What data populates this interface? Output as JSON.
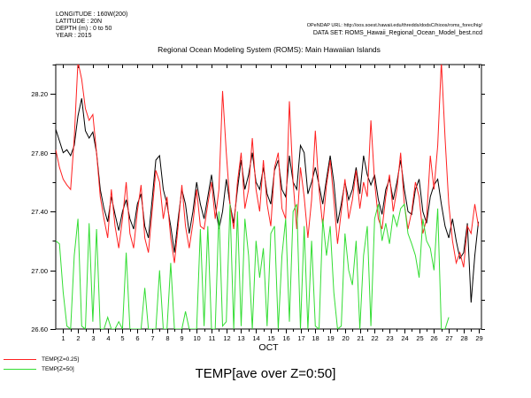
{
  "header": {
    "meta": [
      "LONGITUDE : 160W(200)",
      "LATITUDE : 20N",
      "DEPTH (m) : 0 to 50",
      "YEAR : 2015"
    ],
    "opendap_url": "OPeNDAP URL: http://oos.soest.hawaii.edu/thredds/dodsC/hioos/roms_forec/hig/",
    "dataset": "DATA SET: ROMS_Hawaii_Regional_Ocean_Model_best.ncd",
    "title": "Regional Ocean Modeling System (ROMS): Main Hawaiian Islands"
  },
  "footer": {
    "main_variable_label": "TEMP[ave over Z=0:50]"
  },
  "chart_data": {
    "type": "line",
    "title": "Regional Ocean Modeling System (ROMS): Main Hawaiian Islands",
    "xlabel": "OCT",
    "ylabel": "",
    "bottom_label": "TEMP[ave over Z=0:50]",
    "xlim": [
      0.5,
      29.2
    ],
    "ylim": [
      26.6,
      28.4
    ],
    "x_major_ticks": [
      1,
      2,
      3,
      4,
      5,
      6,
      7,
      8,
      9,
      10,
      11,
      12,
      13,
      14,
      15,
      16,
      17,
      18,
      19,
      20,
      21,
      22,
      23,
      24,
      25,
      26,
      27,
      28,
      29
    ],
    "x_minor_step": 0.5,
    "y_major_ticks": [
      26.6,
      27.0,
      27.4,
      27.8,
      28.2
    ],
    "y_tick_labels": [
      "26.60",
      "27.00",
      "27.40",
      "27.80",
      "28.20"
    ],
    "y_minor_step": 0.2,
    "grid": false,
    "legend_position": "bottom-left",
    "x_start": 0.5,
    "x_step": 0.25,
    "series": [
      {
        "name": "TEMP[ave over Z=0:50]",
        "color": "#000000",
        "values": [
          27.96,
          27.88,
          27.8,
          27.82,
          27.78,
          27.85,
          28.05,
          28.17,
          27.95,
          27.9,
          27.94,
          27.8,
          27.55,
          27.42,
          27.33,
          27.5,
          27.38,
          27.27,
          27.4,
          27.48,
          27.35,
          27.28,
          27.45,
          27.52,
          27.3,
          27.22,
          27.48,
          27.75,
          27.78,
          27.55,
          27.45,
          27.3,
          27.12,
          27.35,
          27.55,
          27.45,
          27.25,
          27.4,
          27.6,
          27.45,
          27.35,
          27.5,
          27.65,
          27.45,
          27.28,
          27.4,
          27.62,
          27.45,
          27.32,
          27.55,
          27.75,
          27.55,
          27.65,
          27.8,
          27.6,
          27.55,
          27.7,
          27.52,
          27.45,
          27.68,
          27.75,
          27.55,
          27.5,
          27.78,
          27.6,
          27.55,
          27.85,
          27.8,
          27.52,
          27.6,
          27.7,
          27.58,
          27.45,
          27.62,
          27.78,
          27.6,
          27.32,
          27.45,
          27.6,
          27.48,
          27.55,
          27.7,
          27.52,
          27.78,
          27.65,
          27.58,
          27.65,
          27.48,
          27.38,
          27.55,
          27.62,
          27.48,
          27.6,
          27.75,
          27.55,
          27.4,
          27.38,
          27.55,
          27.62,
          27.4,
          27.32,
          27.5,
          27.58,
          27.62,
          27.45,
          27.3,
          27.22,
          27.35,
          27.2,
          27.08,
          27.12,
          27.32,
          26.78,
          27.1,
          27.33
        ]
      },
      {
        "name": "TEMP[Z=0.25]",
        "color": "#ff2020",
        "values": [
          27.82,
          27.7,
          27.62,
          27.58,
          27.55,
          27.9,
          28.42,
          28.3,
          28.1,
          28.02,
          28.06,
          27.8,
          27.5,
          27.35,
          27.22,
          27.55,
          27.3,
          27.15,
          27.35,
          27.6,
          27.25,
          27.15,
          27.4,
          27.58,
          27.22,
          27.12,
          27.4,
          27.68,
          27.6,
          27.35,
          27.5,
          27.22,
          27.05,
          27.3,
          27.58,
          27.3,
          27.15,
          27.32,
          27.55,
          27.3,
          27.28,
          27.45,
          27.6,
          27.35,
          27.55,
          28.22,
          27.8,
          27.45,
          27.28,
          27.6,
          27.8,
          27.42,
          27.55,
          27.9,
          27.55,
          27.4,
          27.75,
          27.45,
          27.3,
          27.7,
          27.8,
          27.42,
          27.35,
          28.15,
          27.6,
          27.28,
          27.7,
          27.5,
          27.22,
          27.48,
          27.95,
          27.55,
          27.3,
          27.58,
          27.75,
          27.48,
          27.18,
          27.4,
          27.62,
          27.35,
          27.48,
          27.68,
          27.42,
          27.6,
          27.5,
          28.02,
          27.6,
          27.35,
          27.28,
          27.5,
          27.65,
          27.4,
          27.55,
          27.8,
          27.45,
          27.28,
          27.4,
          27.6,
          27.5,
          27.25,
          27.35,
          27.78,
          27.55,
          27.85,
          28.42,
          27.9,
          27.45,
          27.2,
          27.05,
          27.12,
          27.02,
          27.3,
          27.25,
          27.45,
          27.3
        ]
      },
      {
        "name": "TEMP[Z=50]",
        "color": "#33dd33",
        "values": [
          27.2,
          27.18,
          26.85,
          26.62,
          26.6,
          27.1,
          27.35,
          26.62,
          26.6,
          27.32,
          26.65,
          27.28,
          26.6,
          26.6,
          26.68,
          26.6,
          26.6,
          26.65,
          26.6,
          27.12,
          26.6,
          26.6,
          26.6,
          26.6,
          26.88,
          26.6,
          26.6,
          26.6,
          27.0,
          26.6,
          26.6,
          27.05,
          26.6,
          26.6,
          26.6,
          26.72,
          26.6,
          26.6,
          26.6,
          27.28,
          26.62,
          27.3,
          26.6,
          26.6,
          27.4,
          26.62,
          26.65,
          27.45,
          26.6,
          27.4,
          26.62,
          27.35,
          27.1,
          26.6,
          27.2,
          26.95,
          27.15,
          26.62,
          27.25,
          27.3,
          26.6,
          27.1,
          27.35,
          26.65,
          27.4,
          27.45,
          26.6,
          27.3,
          26.6,
          27.2,
          26.62,
          26.6,
          27.35,
          27.1,
          27.3,
          26.85,
          26.6,
          26.62,
          27.25,
          27.0,
          26.9,
          27.2,
          26.6,
          27.1,
          27.3,
          26.62,
          27.35,
          27.45,
          27.2,
          27.32,
          27.18,
          27.38,
          27.3,
          27.42,
          27.45,
          27.25,
          27.18,
          27.1,
          26.95,
          27.35,
          27.2,
          27.15,
          27.0,
          27.42,
          26.6,
          26.6,
          26.68
        ]
      }
    ],
    "legend": [
      {
        "label": "TEMP[Z=0.25]",
        "color": "#ff2020"
      },
      {
        "label": "TEMP[Z=50]",
        "color": "#33dd33"
      }
    ]
  }
}
